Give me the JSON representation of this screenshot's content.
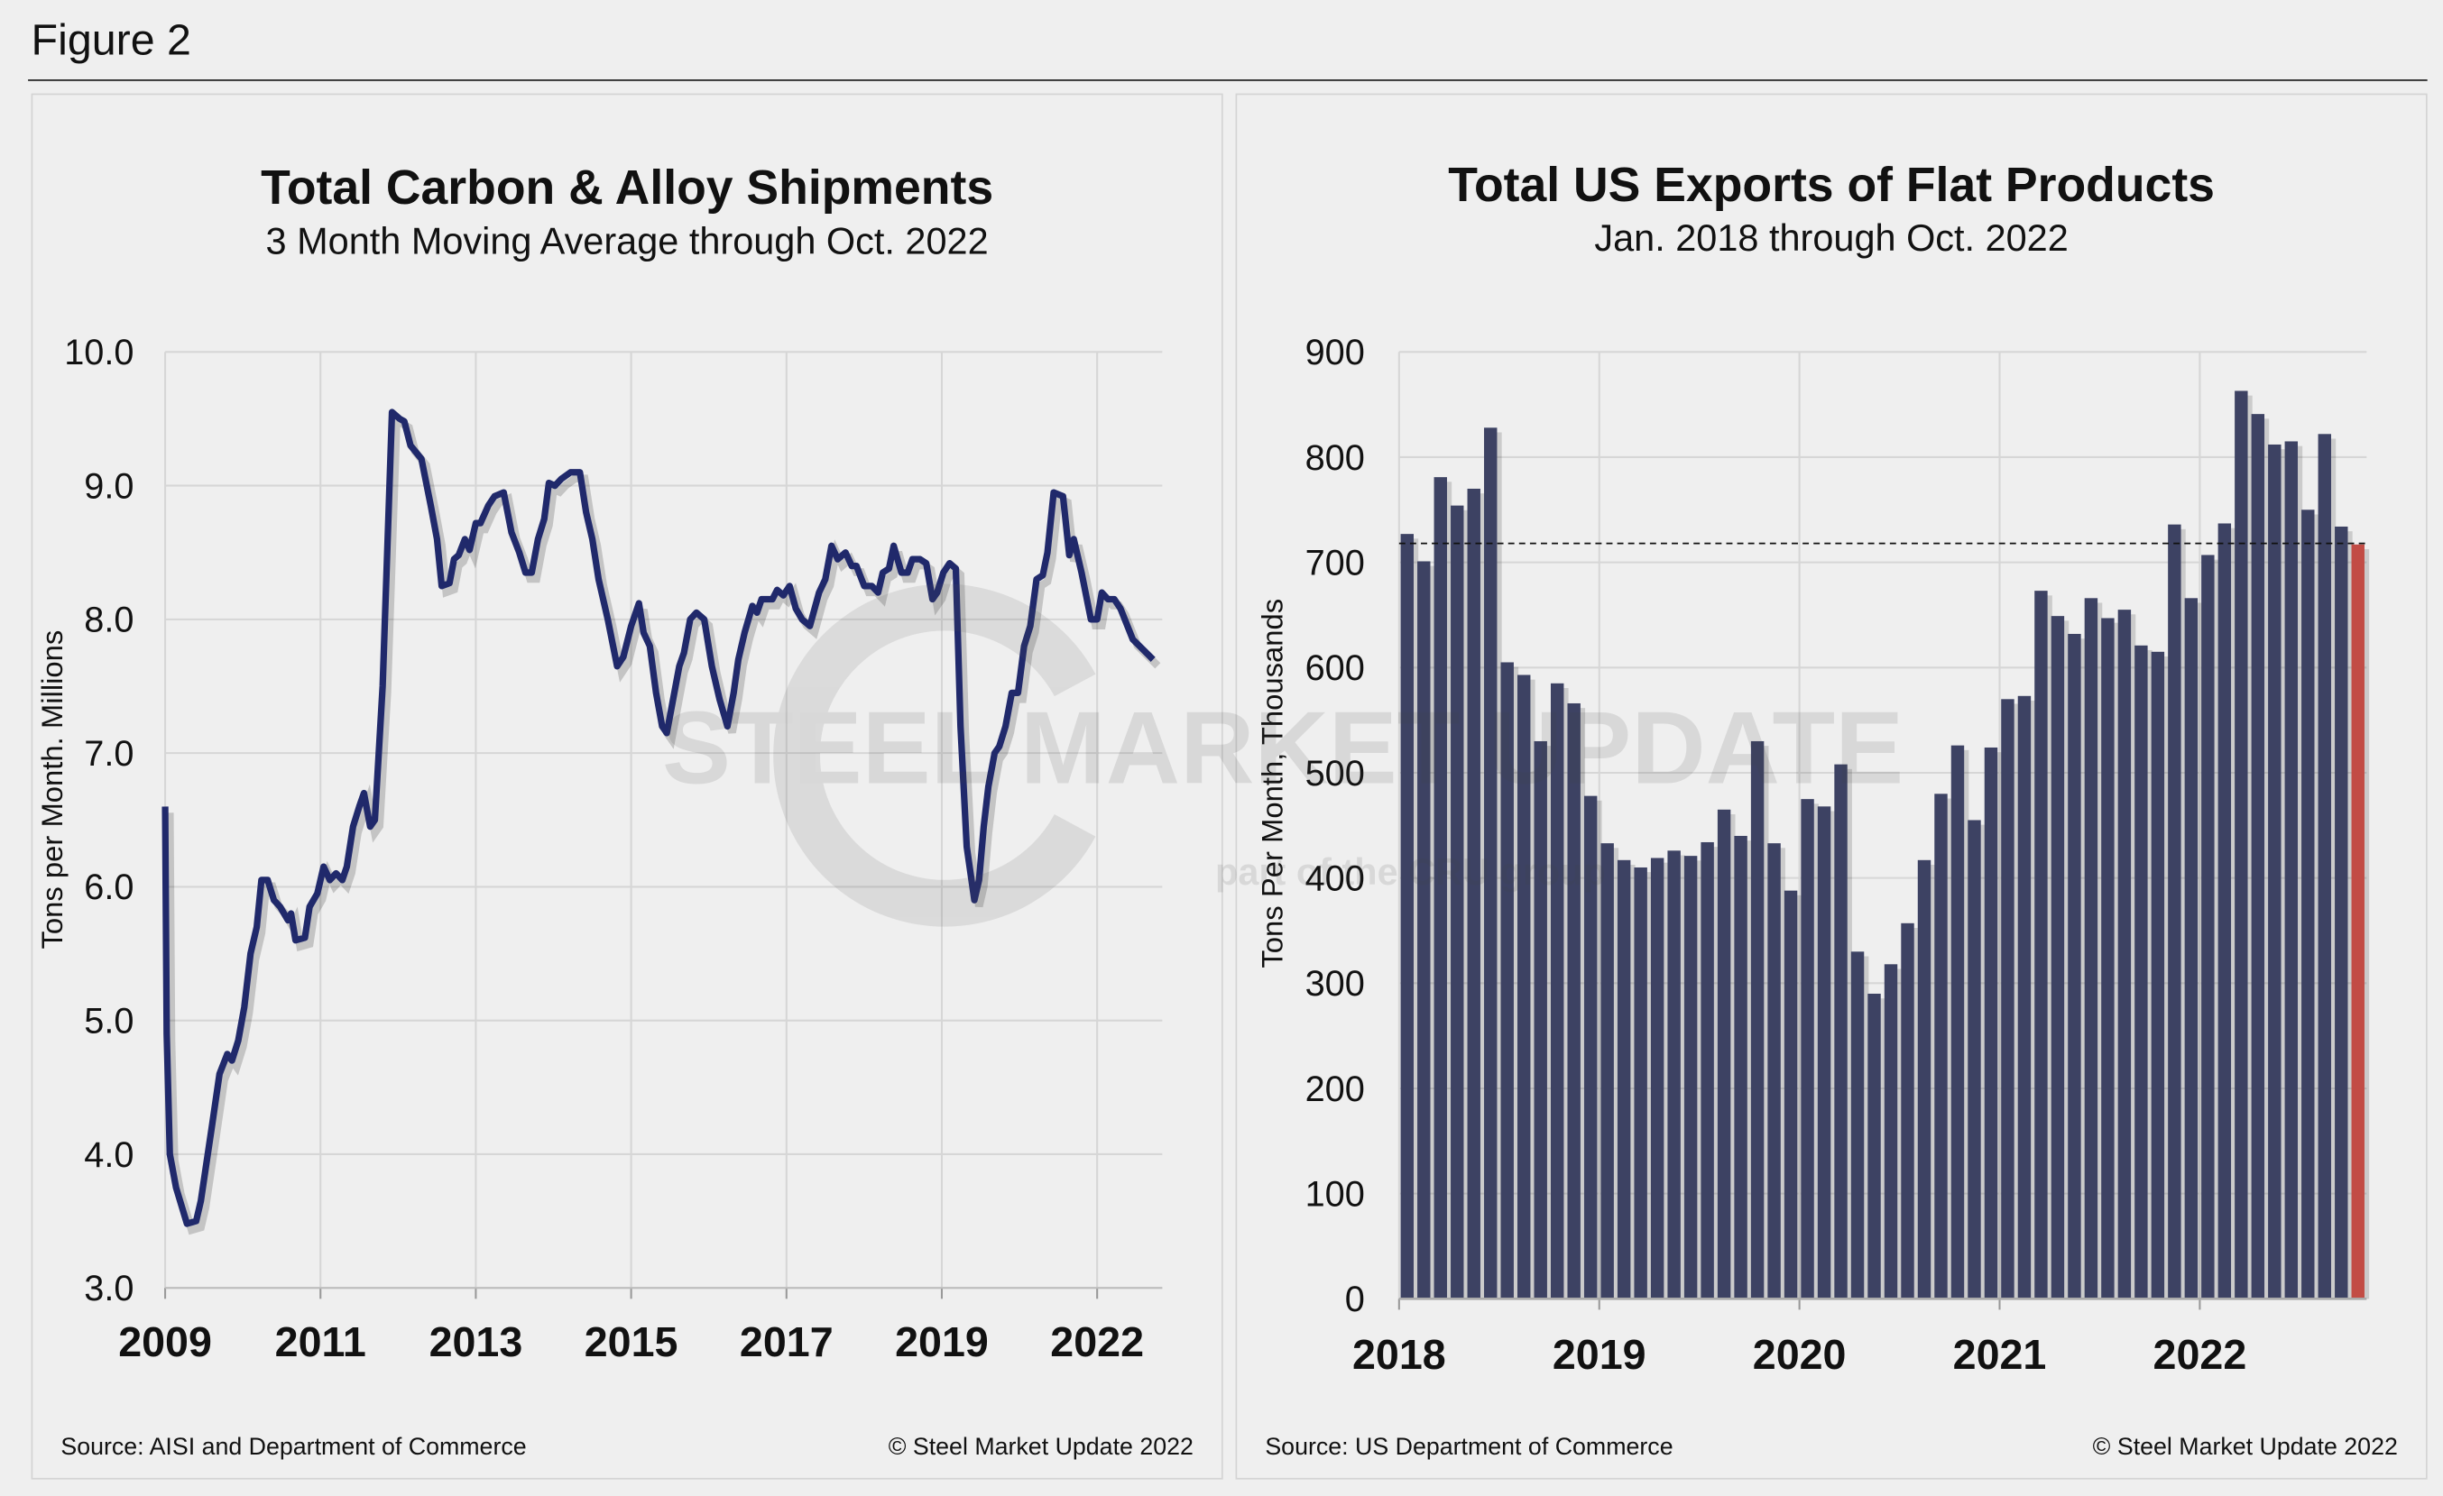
{
  "figure_title": "Figure 2",
  "watermark": {
    "main": "STEEL MARKET UPDATE",
    "sub": "part of the CRU group"
  },
  "colors": {
    "line": "#20296b",
    "bar": "#3d4263",
    "bar_highlight": "#c24c45",
    "grid": "#d6d6d6"
  },
  "chart_data": [
    {
      "type": "line",
      "title": "Total Carbon & Alloy Shipments",
      "subtitle": "3 Month Moving Average through Oct. 2022",
      "ylabel": "Tons per Month. Millions",
      "xlabel": "",
      "ylim": [
        3.0,
        10.0
      ],
      "y_ticks": [
        "3.0",
        "4.0",
        "5.0",
        "6.0",
        "7.0",
        "8.0",
        "9.0",
        "10.0"
      ],
      "x_tick_labels": [
        "2009",
        "2011",
        "2013",
        "2015",
        "2017",
        "2019",
        "2022"
      ],
      "xlim": [
        2009,
        2021.85
      ],
      "grid": true,
      "source": "Source: AISI and Department of Commerce",
      "copyright": "© Steel Market Update 2022",
      "points": [
        [
          2009.0,
          6.6
        ],
        [
          2009.02,
          4.9
        ],
        [
          2009.06,
          4.0
        ],
        [
          2009.14,
          3.75
        ],
        [
          2009.28,
          3.48
        ],
        [
          2009.4,
          3.5
        ],
        [
          2009.46,
          3.65
        ],
        [
          2009.6,
          4.2
        ],
        [
          2009.7,
          4.6
        ],
        [
          2009.8,
          4.75
        ],
        [
          2009.86,
          4.7
        ],
        [
          2009.94,
          4.85
        ],
        [
          2010.02,
          5.1
        ],
        [
          2010.1,
          5.5
        ],
        [
          2010.18,
          5.7
        ],
        [
          2010.24,
          6.05
        ],
        [
          2010.32,
          6.05
        ],
        [
          2010.4,
          5.9
        ],
        [
          2010.48,
          5.85
        ],
        [
          2010.58,
          5.75
        ],
        [
          2010.62,
          5.8
        ],
        [
          2010.68,
          5.6
        ],
        [
          2010.8,
          5.62
        ],
        [
          2010.86,
          5.85
        ],
        [
          2010.96,
          5.95
        ],
        [
          2011.04,
          6.15
        ],
        [
          2011.12,
          6.05
        ],
        [
          2011.2,
          6.1
        ],
        [
          2011.28,
          6.05
        ],
        [
          2011.34,
          6.15
        ],
        [
          2011.42,
          6.45
        ],
        [
          2011.5,
          6.6
        ],
        [
          2011.56,
          6.7
        ],
        [
          2011.64,
          6.45
        ],
        [
          2011.7,
          6.5
        ],
        [
          2011.8,
          7.5
        ],
        [
          2011.92,
          9.55
        ],
        [
          2012.02,
          9.5
        ],
        [
          2012.08,
          9.48
        ],
        [
          2012.16,
          9.3
        ],
        [
          2012.3,
          9.2
        ],
        [
          2012.42,
          8.85
        ],
        [
          2012.5,
          8.6
        ],
        [
          2012.56,
          8.25
        ],
        [
          2012.66,
          8.27
        ],
        [
          2012.72,
          8.45
        ],
        [
          2012.78,
          8.48
        ],
        [
          2012.86,
          8.6
        ],
        [
          2012.92,
          8.52
        ],
        [
          2013.0,
          8.72
        ],
        [
          2013.06,
          8.72
        ],
        [
          2013.16,
          8.85
        ],
        [
          2013.24,
          8.92
        ],
        [
          2013.36,
          8.95
        ],
        [
          2013.46,
          8.65
        ],
        [
          2013.56,
          8.5
        ],
        [
          2013.64,
          8.35
        ],
        [
          2013.72,
          8.35
        ],
        [
          2013.8,
          8.6
        ],
        [
          2013.88,
          8.75
        ],
        [
          2013.94,
          9.02
        ],
        [
          2014.02,
          9.0
        ],
        [
          2014.1,
          9.05
        ],
        [
          2014.22,
          9.1
        ],
        [
          2014.34,
          9.1
        ],
        [
          2014.42,
          8.8
        ],
        [
          2014.5,
          8.6
        ],
        [
          2014.58,
          8.3
        ],
        [
          2014.7,
          8.0
        ],
        [
          2014.82,
          7.65
        ],
        [
          2014.9,
          7.72
        ],
        [
          2015.0,
          7.95
        ],
        [
          2015.1,
          8.12
        ],
        [
          2015.16,
          7.9
        ],
        [
          2015.24,
          7.8
        ],
        [
          2015.32,
          7.45
        ],
        [
          2015.4,
          7.2
        ],
        [
          2015.46,
          7.15
        ],
        [
          2015.54,
          7.4
        ],
        [
          2015.62,
          7.65
        ],
        [
          2015.68,
          7.75
        ],
        [
          2015.76,
          8.0
        ],
        [
          2015.84,
          8.05
        ],
        [
          2015.94,
          8.0
        ],
        [
          2016.04,
          7.65
        ],
        [
          2016.14,
          7.4
        ],
        [
          2016.24,
          7.2
        ],
        [
          2016.32,
          7.45
        ],
        [
          2016.38,
          7.7
        ],
        [
          2016.46,
          7.9
        ],
        [
          2016.56,
          8.1
        ],
        [
          2016.62,
          8.05
        ],
        [
          2016.68,
          8.15
        ],
        [
          2016.82,
          8.15
        ],
        [
          2016.88,
          8.22
        ],
        [
          2016.96,
          8.18
        ],
        [
          2017.04,
          8.25
        ],
        [
          2017.12,
          8.08
        ],
        [
          2017.2,
          8.0
        ],
        [
          2017.3,
          7.95
        ],
        [
          2017.42,
          8.2
        ],
        [
          2017.5,
          8.3
        ],
        [
          2017.58,
          8.55
        ],
        [
          2017.66,
          8.45
        ],
        [
          2017.76,
          8.5
        ],
        [
          2017.84,
          8.4
        ],
        [
          2017.9,
          8.4
        ],
        [
          2018.0,
          8.25
        ],
        [
          2018.1,
          8.25
        ],
        [
          2018.18,
          8.2
        ],
        [
          2018.24,
          8.35
        ],
        [
          2018.32,
          8.38
        ],
        [
          2018.38,
          8.55
        ],
        [
          2018.48,
          8.35
        ],
        [
          2018.56,
          8.35
        ],
        [
          2018.62,
          8.45
        ],
        [
          2018.72,
          8.45
        ],
        [
          2018.8,
          8.42
        ],
        [
          2018.88,
          8.15
        ],
        [
          2018.94,
          8.2
        ],
        [
          2019.02,
          8.35
        ],
        [
          2019.1,
          8.42
        ],
        [
          2019.18,
          8.38
        ],
        [
          2019.24,
          7.2
        ],
        [
          2019.32,
          6.3
        ],
        [
          2019.42,
          5.9
        ],
        [
          2019.48,
          6.05
        ],
        [
          2019.54,
          6.45
        ],
        [
          2019.6,
          6.75
        ],
        [
          2019.68,
          7.0
        ],
        [
          2019.74,
          7.05
        ],
        [
          2019.82,
          7.2
        ],
        [
          2019.9,
          7.45
        ],
        [
          2019.98,
          7.45
        ],
        [
          2020.06,
          7.8
        ],
        [
          2020.14,
          7.95
        ],
        [
          2020.22,
          8.3
        ],
        [
          2020.3,
          8.33
        ],
        [
          2020.36,
          8.5
        ],
        [
          2020.44,
          8.95
        ],
        [
          2020.56,
          8.92
        ],
        [
          2020.64,
          8.48
        ],
        [
          2020.7,
          8.6
        ],
        [
          2020.8,
          8.35
        ],
        [
          2020.92,
          8.0
        ],
        [
          2021.0,
          8.0
        ],
        [
          2021.06,
          8.2
        ],
        [
          2021.14,
          8.15
        ],
        [
          2021.22,
          8.15
        ],
        [
          2021.3,
          8.08
        ],
        [
          2021.46,
          7.85
        ],
        [
          2021.72,
          7.7
        ]
      ]
    },
    {
      "type": "bar",
      "title": "Total US Exports of Flat Products",
      "subtitle": "Jan. 2018 through Oct. 2022",
      "ylabel": "Tons Per Month, Thousands",
      "xlabel": "",
      "ylim": [
        0,
        900
      ],
      "y_ticks": [
        "0",
        "100",
        "200",
        "300",
        "400",
        "500",
        "600",
        "700",
        "800",
        "900"
      ],
      "x_tick_labels": [
        "2018",
        "2019",
        "2020",
        "2021",
        "2022"
      ],
      "grid": true,
      "average_line": 718,
      "highlight_last": true,
      "source": "Source: US Department of Commerce",
      "copyright": "© Steel Market Update 2022",
      "values": [
        727,
        701,
        781,
        754,
        770,
        828,
        605,
        593,
        530,
        585,
        566,
        478,
        433,
        417,
        410,
        419,
        426,
        421,
        434,
        465,
        440,
        530,
        433,
        388,
        475,
        468,
        508,
        330,
        290,
        318,
        357,
        417,
        480,
        526,
        455,
        524,
        570,
        573,
        673,
        649,
        632,
        666,
        647,
        655,
        621,
        615,
        736,
        666,
        707,
        737,
        863,
        841,
        812,
        815,
        750,
        822,
        734,
        717
      ]
    }
  ]
}
